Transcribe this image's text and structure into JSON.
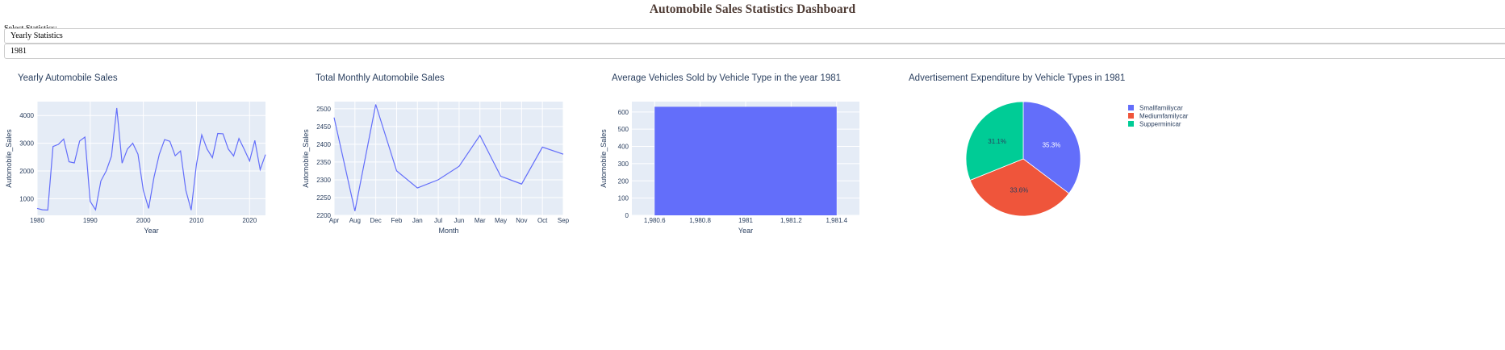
{
  "header": {
    "title": "Automobile Sales Statistics Dashboard"
  },
  "controls": {
    "label": "Select Statistics:",
    "statistic": "Yearly Statistics",
    "year": "1981"
  },
  "colors": {
    "line": "#636efa",
    "bar": "#636efa",
    "plot_bg": "#e5ecf6",
    "pie": [
      "#636efa",
      "#ef553b",
      "#00cc96"
    ],
    "title": "#2a3f5f"
  },
  "chart_data": [
    {
      "type": "line",
      "title": "Yearly Automobile Sales",
      "xlabel": "Year",
      "ylabel": "Automobile_Sales",
      "xlim": [
        1980,
        2023
      ],
      "ylim": [
        400,
        4500
      ],
      "xticks": [
        "1980",
        "1990",
        "2000",
        "2010",
        "2020"
      ],
      "yticks": [
        "1000",
        "2000",
        "3000",
        "4000"
      ],
      "x": [
        1980,
        1981,
        1982,
        1983,
        1984,
        1985,
        1986,
        1987,
        1988,
        1989,
        1990,
        1991,
        1992,
        1993,
        1994,
        1995,
        1996,
        1997,
        1998,
        1999,
        2000,
        2001,
        2002,
        2003,
        2004,
        2005,
        2006,
        2007,
        2008,
        2009,
        2010,
        2011,
        2012,
        2013,
        2014,
        2015,
        2016,
        2017,
        2018,
        2019,
        2020,
        2021,
        2022,
        2023
      ],
      "y": [
        650,
        600,
        590,
        2880,
        2960,
        3150,
        2330,
        2290,
        3080,
        3220,
        900,
        600,
        1640,
        2000,
        2530,
        4270,
        2280,
        2790,
        3000,
        2600,
        1300,
        650,
        1770,
        2600,
        3130,
        3070,
        2550,
        2720,
        1300,
        590,
        2230,
        3300,
        2790,
        2480,
        3350,
        3340,
        2790,
        2540,
        3170,
        2780,
        2360,
        3100,
        2050,
        2590
      ]
    },
    {
      "type": "line",
      "title": "Total Monthly Automobile Sales",
      "xlabel": "Month",
      "ylabel": "Automobile_Sales",
      "ylim": [
        2200,
        2520
      ],
      "yticks": [
        "2200",
        "2250",
        "2300",
        "2350",
        "2400",
        "2450",
        "2500"
      ],
      "categories": [
        "Apr",
        "Aug",
        "Dec",
        "Feb",
        "Jan",
        "Jul",
        "Jun",
        "Mar",
        "May",
        "Nov",
        "Oct",
        "Sep"
      ],
      "values": [
        2475,
        2212,
        2512,
        2325,
        2277,
        2300,
        2338,
        2425,
        2310,
        2288,
        2392,
        2372
      ]
    },
    {
      "type": "bar",
      "title": "Average Vehicles Sold by Vehicle Type in the year 1981",
      "xlabel": "Year",
      "ylabel": "Automobile_Sales",
      "xlim": [
        1980.5,
        1981.5
      ],
      "ylim": [
        0,
        660
      ],
      "xticks": [
        "1,980.6",
        "1,980.8",
        "1981",
        "1,981.2",
        "1,981.4"
      ],
      "yticks": [
        "0",
        "100",
        "200",
        "300",
        "400",
        "500",
        "600"
      ],
      "x": [
        1981
      ],
      "values": [
        630
      ]
    },
    {
      "type": "pie",
      "title": "Advertisement Expenditure by Vehicle Types in 1981",
      "labels": [
        "Smallfamiliycar",
        "Mediumfamilycar",
        "Supperminicar"
      ],
      "values": [
        35.3,
        33.6,
        31.1
      ],
      "percent_labels": [
        "35.3%",
        "33.6%",
        "31.1%"
      ]
    }
  ]
}
